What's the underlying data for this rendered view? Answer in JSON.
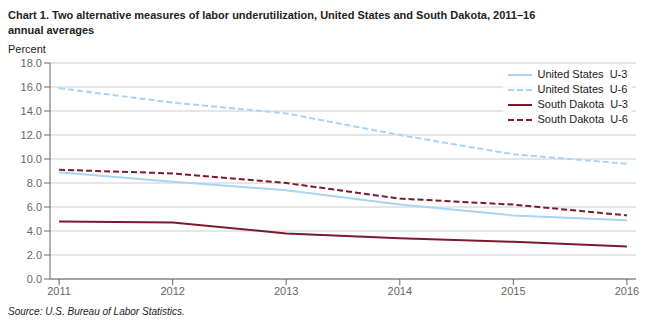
{
  "chart_data": {
    "type": "line",
    "title": "Chart 1. Two alternative measures of labor underutilization, United States and South Dakota, 2011–16",
    "subtitle": "annual averages",
    "y_label": "Percent",
    "annotations": [
      "Source: U.S. Bureau of Labor Statistics."
    ],
    "x": [
      2011,
      2012,
      2013,
      2014,
      2015,
      2016
    ],
    "xlim": [
      2010.92,
      2016.08
    ],
    "xticks": [
      2011,
      2012,
      2013,
      2014,
      2015,
      2016
    ],
    "ylim": [
      0.0,
      18.0
    ],
    "yticks": [
      {
        "value": 0,
        "label": "0.0"
      },
      {
        "value": 2,
        "label": "2.0"
      },
      {
        "value": 4,
        "label": "4.0"
      },
      {
        "value": 6,
        "label": "6.0"
      },
      {
        "value": 8,
        "label": "8.0"
      },
      {
        "value": 10,
        "label": "10.0"
      },
      {
        "value": 12,
        "label": "12.0"
      },
      {
        "value": 14,
        "label": "14.0"
      },
      {
        "value": 16,
        "label": "16.0"
      },
      {
        "value": 18,
        "label": "18.0"
      }
    ],
    "grid": true,
    "legend": "upper right",
    "series": [
      {
        "name": "United States  U-3",
        "color": "#a8d4f5",
        "line_style": "solid",
        "values": [
          8.9,
          8.1,
          7.4,
          6.2,
          5.3,
          4.9
        ]
      },
      {
        "name": "United States  U-6",
        "color": "#a8d4f5",
        "line_style": "dashed",
        "values": [
          15.9,
          14.7,
          13.8,
          12.0,
          10.4,
          9.6
        ]
      },
      {
        "name": "South Dakota  U-3",
        "color": "#7b1a2e",
        "line_style": "solid",
        "values": [
          4.8,
          4.7,
          3.8,
          3.4,
          3.1,
          2.7
        ]
      },
      {
        "name": "South Dakota  U-6",
        "color": "#7b1a2e",
        "line_style": "dashed",
        "values": [
          9.1,
          8.8,
          8.0,
          6.7,
          6.2,
          5.3
        ]
      }
    ]
  }
}
